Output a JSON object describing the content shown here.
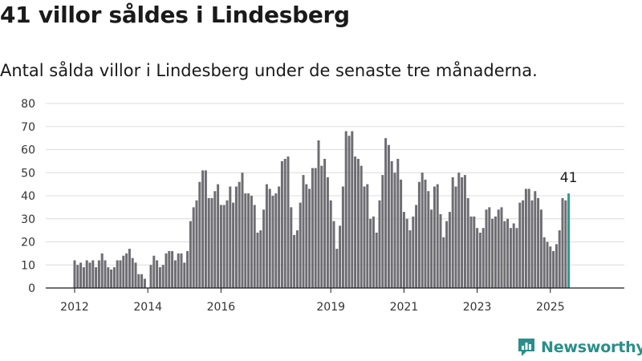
{
  "title": "41 villor såldes i Lindesberg",
  "subtitle": "Antal sålda villor i Lindesberg under de senaste tre månaderna.",
  "brand": {
    "name": "Newsworthy",
    "color": "#2a8f89"
  },
  "chart_data": {
    "type": "bar",
    "title": "41 villor såldes i Lindesberg",
    "subtitle": "Antal sålda villor i Lindesberg under de senaste tre månaderna.",
    "xlabel": "",
    "ylabel": "",
    "ylim": [
      0,
      80
    ],
    "yticks": [
      0,
      10,
      20,
      30,
      40,
      50,
      60,
      70,
      80
    ],
    "x_tick_labels": [
      "2012",
      "2014",
      "2016",
      "2019",
      "2021",
      "2023",
      "2025"
    ],
    "grid": true,
    "bar_color": "#6e6d72",
    "highlight_color": "#2a9a94",
    "start": "2012-01",
    "frequency": "monthly",
    "values": [
      12,
      10,
      11,
      9,
      12,
      11,
      12,
      9,
      12,
      15,
      12,
      9,
      8,
      9,
      12,
      12,
      14,
      15,
      17,
      13,
      11,
      6,
      6,
      4,
      0,
      10,
      14,
      12,
      9,
      10,
      15,
      16,
      16,
      12,
      15,
      15,
      11,
      16,
      29,
      35,
      38,
      46,
      51,
      51,
      39,
      39,
      42,
      45,
      36,
      36,
      38,
      44,
      37,
      44,
      46,
      50,
      41,
      41,
      40,
      36,
      24,
      25,
      34,
      45,
      43,
      40,
      41,
      44,
      55,
      56,
      57,
      35,
      23,
      25,
      37,
      49,
      45,
      43,
      52,
      52,
      64,
      53,
      56,
      48,
      38,
      29,
      17,
      27,
      44,
      68,
      66,
      68,
      57,
      56,
      53,
      44,
      45,
      30,
      31,
      24,
      38,
      49,
      65,
      62,
      55,
      50,
      56,
      47,
      33,
      30,
      25,
      31,
      36,
      46,
      50,
      47,
      42,
      34,
      44,
      45,
      32,
      22,
      29,
      33,
      48,
      44,
      50,
      48,
      49,
      39,
      31,
      31,
      26,
      24,
      26,
      34,
      35,
      30,
      31,
      34,
      35,
      29,
      30,
      26,
      28,
      26,
      37,
      38,
      43,
      43,
      38,
      42,
      39,
      34,
      22,
      20,
      18,
      16,
      19,
      25,
      39,
      38,
      41
    ],
    "highlight_last": true,
    "annotation": {
      "value": "41",
      "target": "last"
    }
  }
}
